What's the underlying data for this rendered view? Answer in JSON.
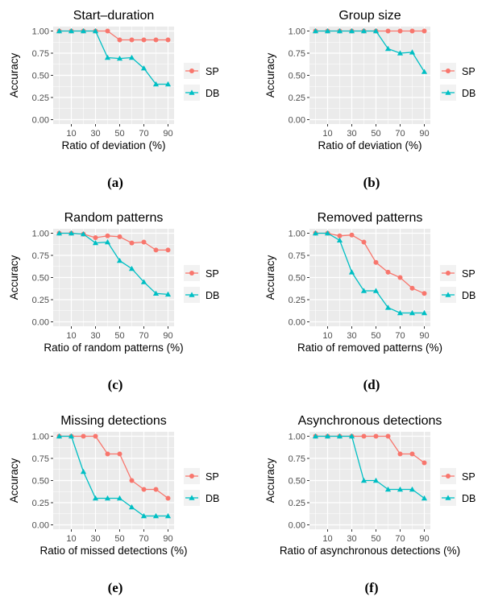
{
  "colors": {
    "panel_bg": "#ebebeb",
    "grid": "#ffffff",
    "axis_text": "#4d4d4d",
    "sp": "#f8766d",
    "db": "#00bfc4"
  },
  "chart_data": [
    {
      "type": "line",
      "caption": "(a)",
      "title": "Start–duration",
      "xlabel": "Ratio of deviation (%)",
      "ylabel": "Accuracy",
      "x": [
        0,
        10,
        20,
        30,
        40,
        50,
        60,
        70,
        80,
        90
      ],
      "xticks": [
        "10",
        "30",
        "50",
        "70",
        "90"
      ],
      "yticks": [
        "0.00",
        "0.25",
        "0.50",
        "0.75",
        "1.00"
      ],
      "ylim": [
        0,
        1
      ],
      "grid": true,
      "legend": "right",
      "series": [
        {
          "name": "SP",
          "marker": "circle",
          "values": [
            1.0,
            1.0,
            1.0,
            1.0,
            1.0,
            0.9,
            0.9,
            0.9,
            0.9,
            0.9
          ]
        },
        {
          "name": "DB",
          "marker": "triangle",
          "values": [
            1.0,
            1.0,
            1.0,
            1.0,
            0.7,
            0.69,
            0.7,
            0.58,
            0.4,
            0.4
          ]
        }
      ]
    },
    {
      "type": "line",
      "caption": "(b)",
      "title": "Group size",
      "xlabel": "Ratio of deviation (%)",
      "ylabel": "Accuracy",
      "x": [
        0,
        10,
        20,
        30,
        40,
        50,
        60,
        70,
        80,
        90
      ],
      "xticks": [
        "10",
        "30",
        "50",
        "70",
        "90"
      ],
      "yticks": [
        "0.00",
        "0.25",
        "0.50",
        "0.75",
        "1.00"
      ],
      "ylim": [
        0,
        1
      ],
      "grid": true,
      "legend": "right",
      "series": [
        {
          "name": "SP",
          "marker": "circle",
          "values": [
            1.0,
            1.0,
            1.0,
            1.0,
            1.0,
            1.0,
            1.0,
            1.0,
            1.0,
            1.0
          ]
        },
        {
          "name": "DB",
          "marker": "triangle",
          "values": [
            1.0,
            1.0,
            1.0,
            1.0,
            1.0,
            1.0,
            0.8,
            0.75,
            0.76,
            0.54
          ]
        }
      ]
    },
    {
      "type": "line",
      "caption": "(c)",
      "title": "Random patterns",
      "xlabel": "Ratio of random patterns (%)",
      "ylabel": "Accuracy",
      "x": [
        0,
        10,
        20,
        30,
        40,
        50,
        60,
        70,
        80,
        90
      ],
      "xticks": [
        "10",
        "30",
        "50",
        "70",
        "90"
      ],
      "yticks": [
        "0.00",
        "0.25",
        "0.50",
        "0.75",
        "1.00"
      ],
      "ylim": [
        0,
        1
      ],
      "grid": true,
      "legend": "right",
      "series": [
        {
          "name": "SP",
          "marker": "circle",
          "values": [
            1.0,
            1.0,
            0.99,
            0.95,
            0.97,
            0.96,
            0.89,
            0.9,
            0.81,
            0.81
          ]
        },
        {
          "name": "DB",
          "marker": "triangle",
          "values": [
            1.0,
            1.0,
            0.99,
            0.89,
            0.9,
            0.69,
            0.6,
            0.45,
            0.32,
            0.31
          ]
        }
      ]
    },
    {
      "type": "line",
      "caption": "(d)",
      "title": "Removed patterns",
      "xlabel": "Ratio of removed patterns (%)",
      "ylabel": "Accuracy",
      "x": [
        0,
        10,
        20,
        30,
        40,
        50,
        60,
        70,
        80,
        90
      ],
      "xticks": [
        "10",
        "30",
        "50",
        "70",
        "90"
      ],
      "yticks": [
        "0.00",
        "0.25",
        "0.50",
        "0.75",
        "1.00"
      ],
      "ylim": [
        0,
        1
      ],
      "grid": true,
      "legend": "right",
      "series": [
        {
          "name": "SP",
          "marker": "circle",
          "values": [
            1.0,
            1.0,
            0.97,
            0.98,
            0.9,
            0.67,
            0.56,
            0.5,
            0.38,
            0.32
          ]
        },
        {
          "name": "DB",
          "marker": "triangle",
          "values": [
            1.0,
            1.0,
            0.92,
            0.56,
            0.35,
            0.35,
            0.16,
            0.1,
            0.1,
            0.1
          ]
        }
      ]
    },
    {
      "type": "line",
      "caption": "(e)",
      "title": "Missing detections",
      "xlabel": "Ratio of missed detections (%)",
      "ylabel": "Accuracy",
      "x": [
        0,
        10,
        20,
        30,
        40,
        50,
        60,
        70,
        80,
        90
      ],
      "xticks": [
        "10",
        "30",
        "50",
        "70",
        "90"
      ],
      "yticks": [
        "0.00",
        "0.25",
        "0.50",
        "0.75",
        "1.00"
      ],
      "ylim": [
        0,
        1
      ],
      "grid": true,
      "legend": "right",
      "series": [
        {
          "name": "SP",
          "marker": "circle",
          "values": [
            1.0,
            1.0,
            1.0,
            1.0,
            0.8,
            0.8,
            0.5,
            0.4,
            0.4,
            0.3
          ]
        },
        {
          "name": "DB",
          "marker": "triangle",
          "values": [
            1.0,
            1.0,
            0.6,
            0.3,
            0.3,
            0.3,
            0.2,
            0.1,
            0.1,
            0.1
          ]
        }
      ]
    },
    {
      "type": "line",
      "caption": "(f)",
      "title": "Asynchronous detections",
      "xlabel": "Ratio of asynchronous detections (%)",
      "ylabel": "Accuracy",
      "x": [
        0,
        10,
        20,
        30,
        40,
        50,
        60,
        70,
        80,
        90
      ],
      "xticks": [
        "10",
        "30",
        "50",
        "70",
        "90"
      ],
      "yticks": [
        "0.00",
        "0.25",
        "0.50",
        "0.75",
        "1.00"
      ],
      "ylim": [
        0,
        1
      ],
      "grid": true,
      "legend": "right",
      "series": [
        {
          "name": "SP",
          "marker": "circle",
          "values": [
            1.0,
            1.0,
            1.0,
            1.0,
            1.0,
            1.0,
            1.0,
            0.8,
            0.8,
            0.7
          ]
        },
        {
          "name": "DB",
          "marker": "triangle",
          "values": [
            1.0,
            1.0,
            1.0,
            1.0,
            0.5,
            0.5,
            0.4,
            0.4,
            0.4,
            0.3
          ]
        }
      ]
    }
  ]
}
